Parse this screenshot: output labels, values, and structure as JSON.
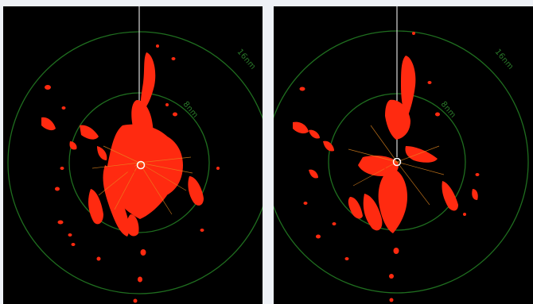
{
  "panels": [
    {
      "id": "left",
      "rings": [
        {
          "label": "8nm"
        },
        {
          "label": "16nm"
        }
      ],
      "colors": {
        "ring": "#1f6e1f",
        "echo": "#ff2a10",
        "echo_edge": "#e88a20",
        "heading": "#d8d8d8",
        "center": "#ffffff"
      }
    },
    {
      "id": "right",
      "rings": [
        {
          "label": "8nm"
        },
        {
          "label": "16nm"
        }
      ],
      "colors": {
        "ring": "#1f6e1f",
        "echo": "#ff2a10",
        "echo_edge": "#e88a20",
        "heading": "#d8d8d8",
        "center": "#ffffff"
      }
    }
  ]
}
